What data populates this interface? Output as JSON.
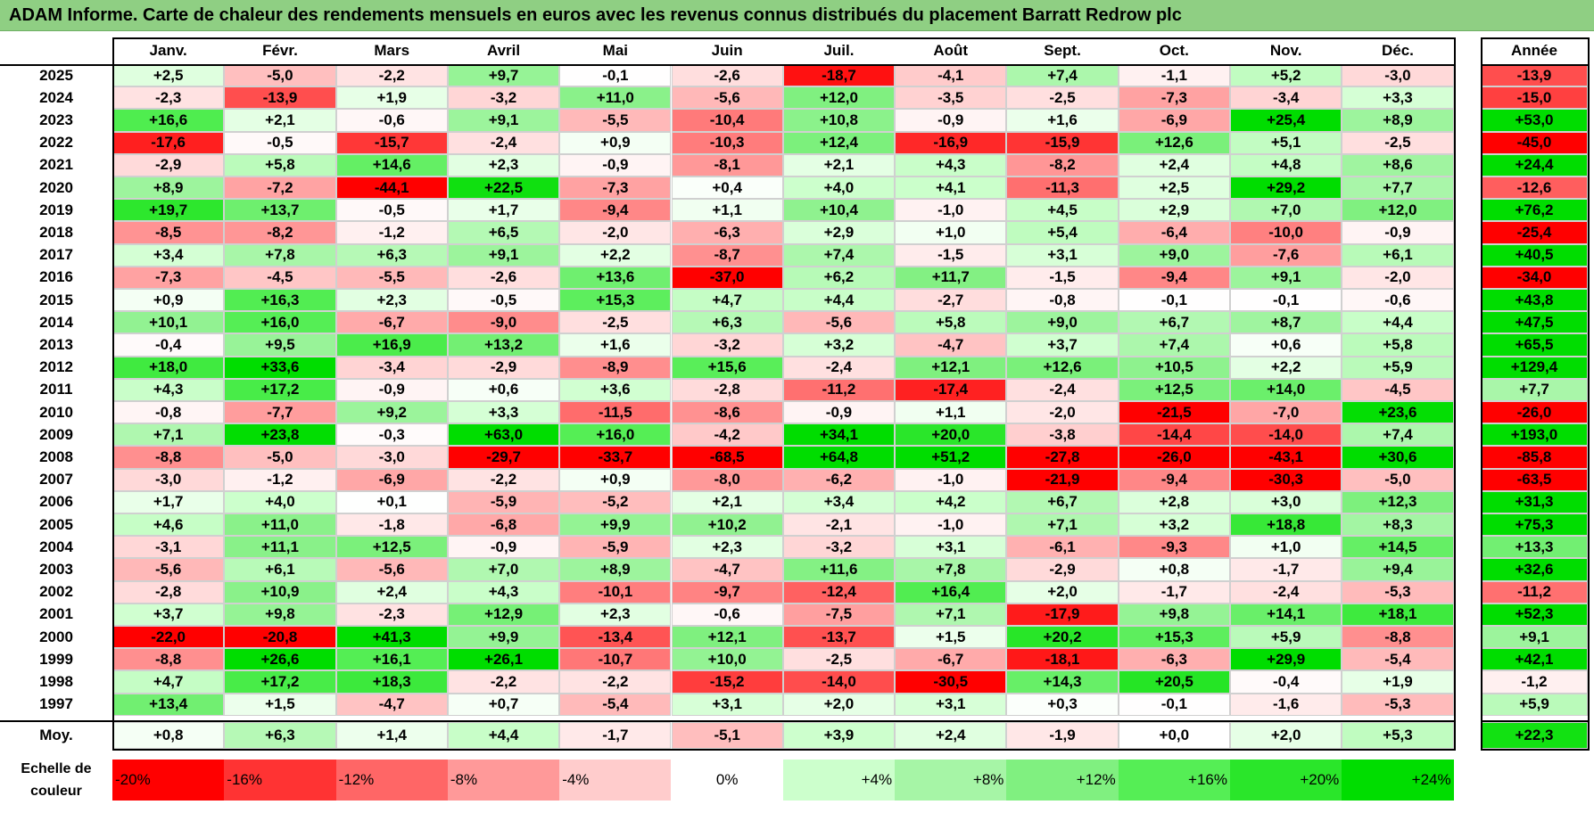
{
  "title": "ADAM Informe. Carte de chaleur des rendements mensuels en euros avec les revenus connus distribués du placement Barratt Redrow plc",
  "chart_data": {
    "type": "heatmap",
    "columns": [
      "Janv.",
      "Févr.",
      "Mars",
      "Avril",
      "Mai",
      "Juin",
      "Juil.",
      "Août",
      "Sept.",
      "Oct.",
      "Nov.",
      "Déc."
    ],
    "year_header": "Année",
    "rows": [
      {
        "year": "2025",
        "values": [
          "+2,5",
          "-5,0",
          "-2,2",
          "+9,7",
          "-0,1",
          "-2,6",
          "-18,7",
          "-4,1",
          "+7,4",
          "-1,1",
          "+5,2",
          "-3,0"
        ],
        "annual": "-13,9"
      },
      {
        "year": "2024",
        "values": [
          "-2,3",
          "-13,9",
          "+1,9",
          "-3,2",
          "+11,0",
          "-5,6",
          "+12,0",
          "-3,5",
          "-2,5",
          "-7,3",
          "-3,4",
          "+3,3"
        ],
        "annual": "-15,0"
      },
      {
        "year": "2023",
        "values": [
          "+16,6",
          "+2,1",
          "-0,6",
          "+9,1",
          "-5,5",
          "-10,4",
          "+10,8",
          "-0,9",
          "+1,6",
          "-6,9",
          "+25,4",
          "+8,9"
        ],
        "annual": "+53,0"
      },
      {
        "year": "2022",
        "values": [
          "-17,6",
          "-0,5",
          "-15,7",
          "-2,4",
          "+0,9",
          "-10,3",
          "+12,4",
          "-16,9",
          "-15,9",
          "+12,6",
          "+5,1",
          "-2,5"
        ],
        "annual": "-45,0"
      },
      {
        "year": "2021",
        "values": [
          "-2,9",
          "+5,8",
          "+14,6",
          "+2,3",
          "-0,9",
          "-8,1",
          "+2,1",
          "+4,3",
          "-8,2",
          "+2,4",
          "+4,8",
          "+8,6"
        ],
        "annual": "+24,4"
      },
      {
        "year": "2020",
        "values": [
          "+8,9",
          "-7,2",
          "-44,1",
          "+22,5",
          "-7,3",
          "+0,4",
          "+4,0",
          "+4,1",
          "-11,3",
          "+2,5",
          "+29,2",
          "+7,7"
        ],
        "annual": "-12,6"
      },
      {
        "year": "2019",
        "values": [
          "+19,7",
          "+13,7",
          "-0,5",
          "+1,7",
          "-9,4",
          "+1,1",
          "+10,4",
          "-1,0",
          "+4,5",
          "+2,9",
          "+7,0",
          "+12,0"
        ],
        "annual": "+76,2"
      },
      {
        "year": "2018",
        "values": [
          "-8,5",
          "-8,2",
          "-1,2",
          "+6,5",
          "-2,0",
          "-6,3",
          "+2,9",
          "+1,0",
          "+5,4",
          "-6,4",
          "-10,0",
          "-0,9"
        ],
        "annual": "-25,4"
      },
      {
        "year": "2017",
        "values": [
          "+3,4",
          "+7,8",
          "+6,3",
          "+9,1",
          "+2,2",
          "-8,7",
          "+7,4",
          "-1,5",
          "+3,1",
          "+9,0",
          "-7,6",
          "+6,1"
        ],
        "annual": "+40,5"
      },
      {
        "year": "2016",
        "values": [
          "-7,3",
          "-4,5",
          "-5,5",
          "-2,6",
          "+13,6",
          "-37,0",
          "+6,2",
          "+11,7",
          "-1,5",
          "-9,4",
          "+9,1",
          "-2,0"
        ],
        "annual": "-34,0"
      },
      {
        "year": "2015",
        "values": [
          "+0,9",
          "+16,3",
          "+2,3",
          "-0,5",
          "+15,3",
          "+4,7",
          "+4,4",
          "-2,7",
          "-0,8",
          "-0,1",
          "-0,1",
          "-0,6"
        ],
        "annual": "+43,8"
      },
      {
        "year": "2014",
        "values": [
          "+10,1",
          "+16,0",
          "-6,7",
          "-9,0",
          "-2,5",
          "+6,3",
          "-5,6",
          "+5,8",
          "+9,0",
          "+6,7",
          "+8,7",
          "+4,4"
        ],
        "annual": "+47,5"
      },
      {
        "year": "2013",
        "values": [
          "-0,4",
          "+9,5",
          "+16,9",
          "+13,2",
          "+1,6",
          "-3,2",
          "+3,2",
          "-4,7",
          "+3,7",
          "+7,4",
          "+0,6",
          "+5,8"
        ],
        "annual": "+65,5"
      },
      {
        "year": "2012",
        "values": [
          "+18,0",
          "+33,6",
          "-3,4",
          "-2,9",
          "-8,9",
          "+15,6",
          "-2,4",
          "+12,1",
          "+12,6",
          "+10,5",
          "+2,2",
          "+5,9"
        ],
        "annual": "+129,4"
      },
      {
        "year": "2011",
        "values": [
          "+4,3",
          "+17,2",
          "-0,9",
          "+0,6",
          "+3,6",
          "-2,8",
          "-11,2",
          "-17,4",
          "-2,4",
          "+12,5",
          "+14,0",
          "-4,5"
        ],
        "annual": "+7,7"
      },
      {
        "year": "2010",
        "values": [
          "-0,8",
          "-7,7",
          "+9,2",
          "+3,3",
          "-11,5",
          "-8,6",
          "-0,9",
          "+1,1",
          "-2,0",
          "-21,5",
          "-7,0",
          "+23,6"
        ],
        "annual": "-26,0"
      },
      {
        "year": "2009",
        "values": [
          "+7,1",
          "+23,8",
          "-0,3",
          "+63,0",
          "+16,0",
          "-4,2",
          "+34,1",
          "+20,0",
          "-3,8",
          "-14,4",
          "-14,0",
          "+7,4"
        ],
        "annual": "+193,0"
      },
      {
        "year": "2008",
        "values": [
          "-8,8",
          "-5,0",
          "-3,0",
          "-29,7",
          "-33,7",
          "-68,5",
          "+64,8",
          "+51,2",
          "-27,8",
          "-26,0",
          "-43,1",
          "+30,6"
        ],
        "annual": "-85,8"
      },
      {
        "year": "2007",
        "values": [
          "-3,0",
          "-1,2",
          "-6,9",
          "-2,2",
          "+0,9",
          "-8,0",
          "-6,2",
          "-1,0",
          "-21,9",
          "-9,4",
          "-30,3",
          "-5,0"
        ],
        "annual": "-63,5"
      },
      {
        "year": "2006",
        "values": [
          "+1,7",
          "+4,0",
          "+0,1",
          "-5,9",
          "-5,2",
          "+2,1",
          "+3,4",
          "+4,2",
          "+6,7",
          "+2,8",
          "+3,0",
          "+12,3"
        ],
        "annual": "+31,3"
      },
      {
        "year": "2005",
        "values": [
          "+4,6",
          "+11,0",
          "-1,8",
          "-6,8",
          "+9,9",
          "+10,2",
          "-2,1",
          "-1,0",
          "+7,1",
          "+3,2",
          "+18,8",
          "+8,3"
        ],
        "annual": "+75,3"
      },
      {
        "year": "2004",
        "values": [
          "-3,1",
          "+11,1",
          "+12,5",
          "-0,9",
          "-5,9",
          "+2,3",
          "-3,2",
          "+3,1",
          "-6,1",
          "-9,3",
          "+1,0",
          "+14,5"
        ],
        "annual": "+13,3"
      },
      {
        "year": "2003",
        "values": [
          "-5,6",
          "+6,1",
          "-5,6",
          "+7,0",
          "+8,9",
          "-4,7",
          "+11,6",
          "+7,8",
          "-2,9",
          "+0,8",
          "-1,7",
          "+9,4"
        ],
        "annual": "+32,6"
      },
      {
        "year": "2002",
        "values": [
          "-2,8",
          "+10,9",
          "+2,4",
          "+4,3",
          "-10,1",
          "-9,7",
          "-12,4",
          "+16,4",
          "+2,0",
          "-1,7",
          "-2,4",
          "-5,3"
        ],
        "annual": "-11,2"
      },
      {
        "year": "2001",
        "values": [
          "+3,7",
          "+9,8",
          "-2,3",
          "+12,9",
          "+2,3",
          "-0,6",
          "-7,5",
          "+7,1",
          "-17,9",
          "+9,8",
          "+14,1",
          "+18,1"
        ],
        "annual": "+52,3"
      },
      {
        "year": "2000",
        "values": [
          "-22,0",
          "-20,8",
          "+41,3",
          "+9,9",
          "-13,4",
          "+12,1",
          "-13,7",
          "+1,5",
          "+20,2",
          "+15,3",
          "+5,9",
          "-8,8"
        ],
        "annual": "+9,1"
      },
      {
        "year": "1999",
        "values": [
          "-8,8",
          "+26,6",
          "+16,1",
          "+26,1",
          "-10,7",
          "+10,0",
          "-2,5",
          "-6,7",
          "-18,1",
          "-6,3",
          "+29,9",
          "-5,4"
        ],
        "annual": "+42,1"
      },
      {
        "year": "1998",
        "values": [
          "+4,7",
          "+17,2",
          "+18,3",
          "-2,2",
          "-2,2",
          "-15,2",
          "-14,0",
          "-30,5",
          "+14,3",
          "+20,5",
          "-0,4",
          "+1,9"
        ],
        "annual": "-1,2"
      },
      {
        "year": "1997",
        "values": [
          "+13,4",
          "+1,5",
          "-4,7",
          "+0,7",
          "-5,4",
          "+3,1",
          "+2,0",
          "+3,1",
          "+0,3",
          "-0,1",
          "-1,6",
          "-5,3"
        ],
        "annual": "+5,9"
      }
    ],
    "average": {
      "label": "Moy.",
      "values": [
        "+0,8",
        "+6,3",
        "+1,4",
        "+4,4",
        "-1,7",
        "-5,1",
        "+3,9",
        "+2,4",
        "-1,9",
        "+0,0",
        "+2,0",
        "+5,3"
      ],
      "annual": "+22,3"
    },
    "scale": {
      "label": "Echelle de couleur",
      "steps": [
        {
          "label": "-20%",
          "value": -20,
          "color": "#ff0000",
          "align": "left"
        },
        {
          "label": "-16%",
          "value": -16,
          "color": "#ff3333",
          "align": "left"
        },
        {
          "label": "-12%",
          "value": -12,
          "color": "#ff6666",
          "align": "left"
        },
        {
          "label": "-8%",
          "value": -8,
          "color": "#ff9999",
          "align": "left"
        },
        {
          "label": "-4%",
          "value": -4,
          "color": "#ffcccc",
          "align": "left"
        },
        {
          "label": "0%",
          "value": 0,
          "color": "#ffffff",
          "align": "center"
        },
        {
          "label": "+4%",
          "value": 4,
          "color": "#ccffcc",
          "align": "right"
        },
        {
          "label": "+8%",
          "value": 8,
          "color": "#a6f5a6",
          "align": "right"
        },
        {
          "label": "+12%",
          "value": 12,
          "color": "#80f080",
          "align": "right"
        },
        {
          "label": "+16%",
          "value": 16,
          "color": "#55ee55",
          "align": "right"
        },
        {
          "label": "+20%",
          "value": 20,
          "color": "#2ae62a",
          "align": "right"
        },
        {
          "label": "+24%",
          "value": 24,
          "color": "#00dd00",
          "align": "right"
        }
      ]
    }
  }
}
